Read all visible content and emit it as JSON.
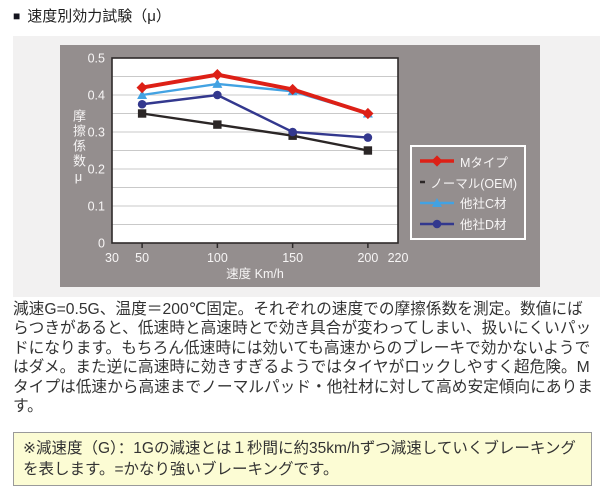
{
  "header": {
    "bullet": "■",
    "title": "速度別効力試験（μ）"
  },
  "description": "減速G=0.5G、温度＝200℃固定。それぞれの速度での摩擦係数を測定。数値にばらつきがあると、低速時と高速時とで効き具合が変わってしまい、扱いにくいパッドになります。もちろん低速時には効いても高速からのブレーキで効かないようではダメ。また逆に高速時に効きすぎるようではタイヤがロックしやすく超危険。Mタイプは低速から高速までノーマルパッド・他社材に対して高め安定傾向にあります。",
  "note": "※減速度（G）：1Gの減速とは１秒間に約35km/hずつ減速していくブレーキングを表します。=かなり強いブレーキングです。",
  "colors": {
    "band_bg": "#f2f1f1",
    "panel_bg": "#948e8e",
    "plot_bg": "#ffffff",
    "grid": "#c9c9c9",
    "plot_border": "#2e2a2a",
    "axis_text": "#f7f5f5",
    "body_text": "#333333",
    "note_bg": "#fcfcd4",
    "note_border": "#9a9a9a"
  },
  "chart_data": {
    "type": "line",
    "x": [
      50,
      100,
      150,
      200
    ],
    "xlabel": "速度 Km/h",
    "ylabel": "摩擦係数μ",
    "xlim": [
      30,
      220
    ],
    "ylim": [
      0,
      0.5
    ],
    "x_ticks": [
      30,
      50,
      100,
      150,
      200,
      220
    ],
    "x_tick_marks": [
      50,
      100,
      150,
      200
    ],
    "y_ticks": [
      0,
      0.1,
      0.2,
      0.3,
      0.4,
      0.5
    ],
    "grid_step": 0.05,
    "grid": "horizontal",
    "legend_position": "inside-right",
    "series": [
      {
        "name": "Mタイプ",
        "color": "#dd2016",
        "marker": "diamond",
        "values": [
          0.42,
          0.455,
          0.415,
          0.35
        ]
      },
      {
        "name": "ノーマル(OEM)",
        "color": "#2b2626",
        "marker": "square",
        "values": [
          0.35,
          0.32,
          0.29,
          0.25
        ]
      },
      {
        "name": "他社C材",
        "color": "#42a2e2",
        "marker": "triangle",
        "values": [
          0.4,
          0.43,
          0.41,
          0.35
        ]
      },
      {
        "name": "他社D材",
        "color": "#33388e",
        "marker": "circle",
        "values": [
          0.375,
          0.4,
          0.3,
          0.285
        ]
      }
    ],
    "draw_order": [
      1,
      2,
      3,
      0
    ]
  }
}
